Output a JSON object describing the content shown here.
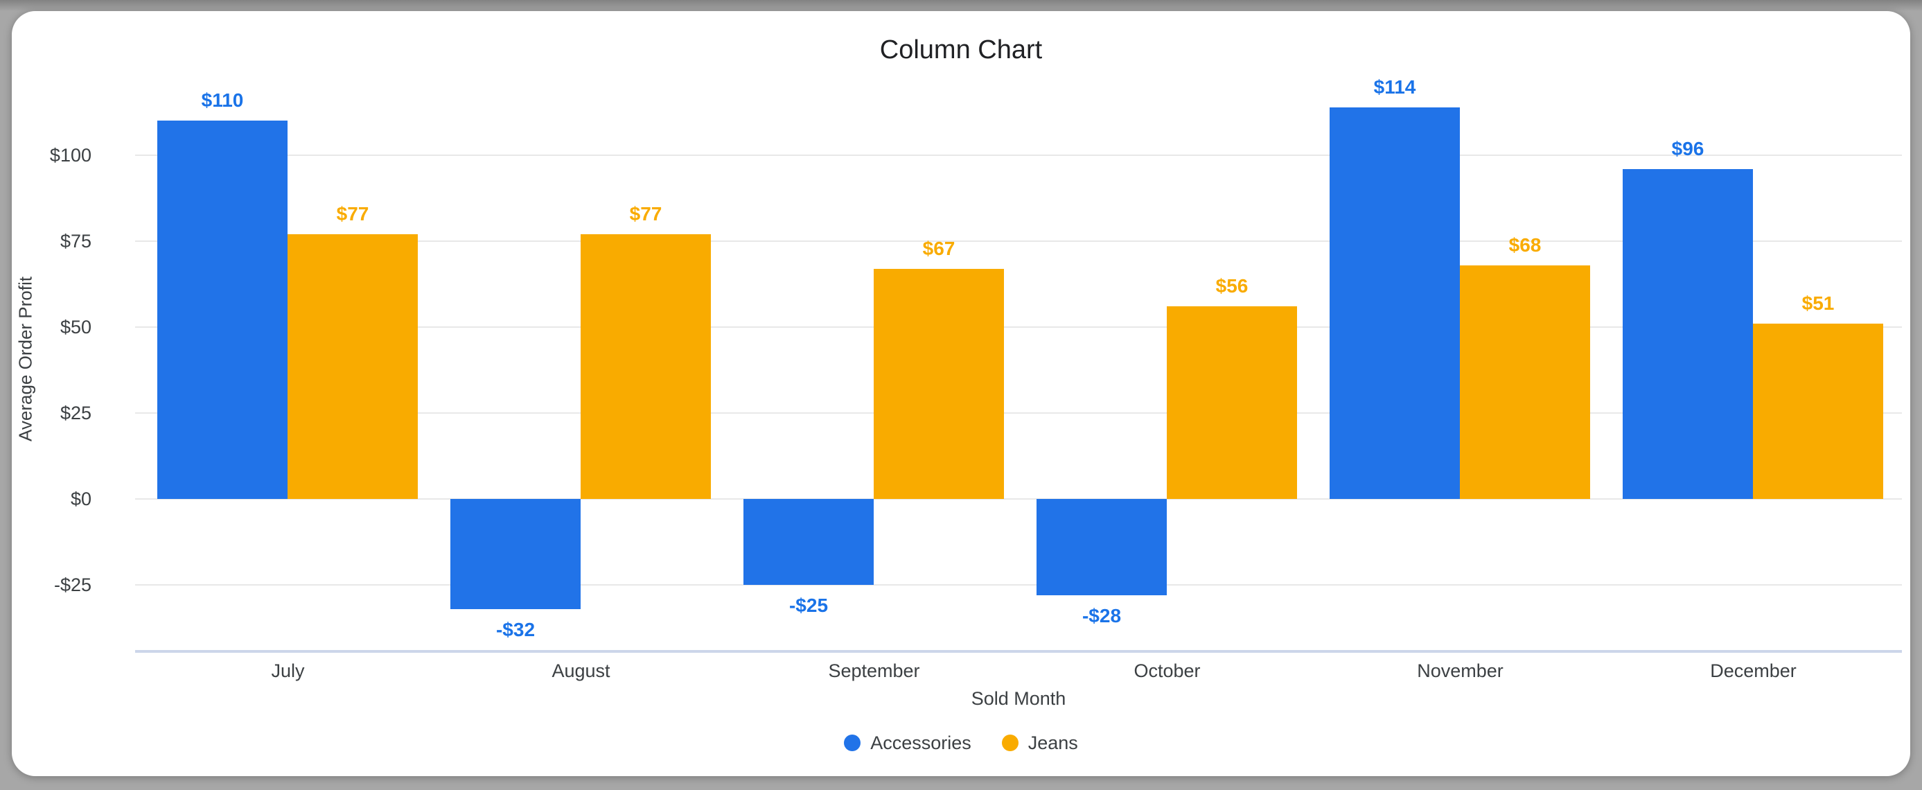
{
  "chart_data": {
    "type": "bar",
    "title": "Column Chart",
    "xlabel": "Sold Month",
    "ylabel": "Average Order Profit",
    "categories": [
      "July",
      "August",
      "September",
      "October",
      "November",
      "December"
    ],
    "series": [
      {
        "name": "Accessories",
        "color": "#2173e8",
        "label_color": "#1a73e8",
        "values": [
          110,
          -32,
          -25,
          -28,
          114,
          96
        ],
        "labels": [
          "$110",
          "-$32",
          "-$25",
          "-$28",
          "$114",
          "$96"
        ]
      },
      {
        "name": "Jeans",
        "color": "#f9ab00",
        "label_color": "#f9ab00",
        "values": [
          77,
          77,
          67,
          56,
          68,
          51
        ],
        "labels": [
          "$77",
          "$77",
          "$67",
          "$56",
          "$68",
          "$51"
        ]
      }
    ],
    "yticks": [
      {
        "label": "$100",
        "value": 100
      },
      {
        "label": "$75",
        "value": 75
      },
      {
        "label": "$50",
        "value": 50
      },
      {
        "label": "$25",
        "value": 25
      },
      {
        "label": "$0",
        "value": 0
      },
      {
        "label": "-$25",
        "value": -25
      }
    ],
    "ylim": [
      -45,
      120
    ],
    "grid": true,
    "legend_position": "bottom"
  }
}
